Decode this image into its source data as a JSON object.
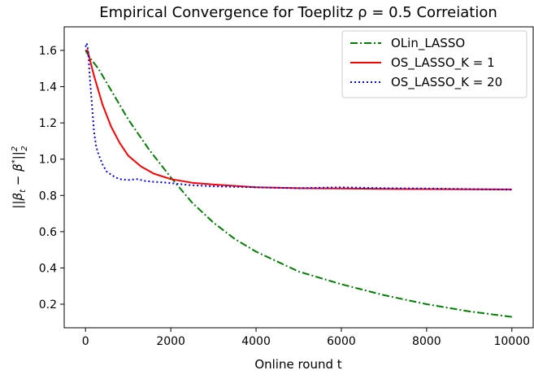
{
  "chart_data": {
    "type": "line",
    "title": "Empirical Convergence for Toeplitz ρ = 0.5 Correiation",
    "xlabel": "Online round t",
    "ylabel": "||βt − β*||²₂",
    "xlim": [
      -500,
      10500
    ],
    "ylim": [
      0.07,
      1.73
    ],
    "xticks": [
      0,
      2000,
      4000,
      6000,
      8000,
      10000
    ],
    "yticks": [
      0.2,
      0.4,
      0.6,
      0.8,
      1.0,
      1.2,
      1.4,
      1.6
    ],
    "ytick_labels": [
      "0.2",
      "0.4",
      "0.6",
      "0.8",
      "1.0",
      "1.2",
      "1.4",
      "1.6"
    ],
    "grid": false,
    "legend_position": "top-right",
    "series": [
      {
        "name": "OLin_LASSO",
        "color": "#008000",
        "style": "dashdot",
        "x": [
          0,
          100,
          300,
          600,
          1000,
          1500,
          2000,
          2500,
          3000,
          3500,
          4000,
          5000,
          6000,
          7000,
          8000,
          9000,
          10000
        ],
        "y": [
          1.6,
          1.56,
          1.5,
          1.38,
          1.22,
          1.05,
          0.9,
          0.76,
          0.65,
          0.56,
          0.49,
          0.38,
          0.31,
          0.25,
          0.2,
          0.16,
          0.13
        ]
      },
      {
        "name": "OS_LASSO_K = 1",
        "color": "#ff0000",
        "style": "solid",
        "x": [
          0,
          50,
          100,
          200,
          400,
          600,
          800,
          1000,
          1300,
          1600,
          2000,
          2500,
          3000,
          4000,
          5000,
          6000,
          7000,
          8000,
          9000,
          10000
        ],
        "y": [
          1.6,
          1.6,
          1.55,
          1.46,
          1.3,
          1.18,
          1.09,
          1.02,
          0.96,
          0.92,
          0.89,
          0.87,
          0.86,
          0.845,
          0.84,
          0.838,
          0.836,
          0.835,
          0.834,
          0.833
        ]
      },
      {
        "name": "OS_LASSO_K = 20",
        "color": "#0000ff",
        "style": "dotted",
        "x": [
          0,
          30,
          60,
          100,
          150,
          200,
          250,
          300,
          400,
          500,
          600,
          700,
          800,
          1000,
          1200,
          1400,
          1600,
          1800,
          2000,
          2400,
          3000,
          4000,
          5000,
          6000,
          7000,
          8000,
          9000,
          10000
        ],
        "y": [
          1.62,
          1.64,
          1.6,
          1.45,
          1.3,
          1.15,
          1.07,
          1.03,
          0.97,
          0.93,
          0.915,
          0.9,
          0.89,
          0.885,
          0.89,
          0.88,
          0.875,
          0.872,
          0.868,
          0.858,
          0.85,
          0.845,
          0.84,
          0.845,
          0.84,
          0.838,
          0.835,
          0.832
        ]
      }
    ]
  }
}
